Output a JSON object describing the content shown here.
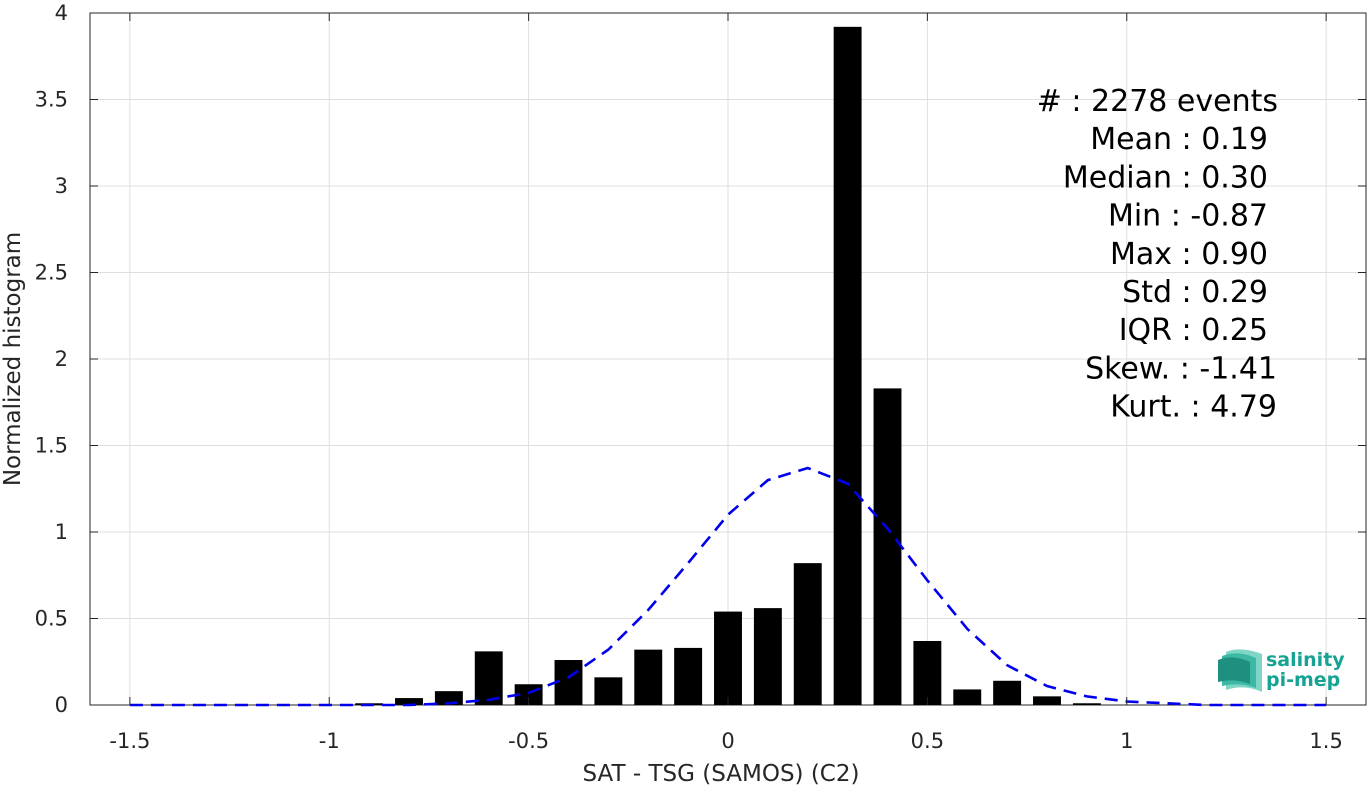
{
  "chart_data": {
    "type": "bar",
    "xlabel": "SAT - TSG (SAMOS) (C2)",
    "ylabel": "Normalized histogram",
    "xlim": [
      -1.6,
      1.6
    ],
    "ylim": [
      0,
      4
    ],
    "xticks": [
      -1.5,
      -1,
      -0.5,
      0,
      0.5,
      1,
      1.5
    ],
    "xtick_labels": [
      "-1.5",
      "-1",
      "-0.5",
      "0",
      "0.5",
      "1",
      "1.5"
    ],
    "yticks": [
      0,
      0.5,
      1,
      1.5,
      2,
      2.5,
      3,
      3.5,
      4
    ],
    "ytick_labels": [
      "0",
      "0.5",
      "1",
      "1.5",
      "2",
      "2.5",
      "3",
      "3.5",
      "4"
    ],
    "grid": true,
    "bar_color": "#000000",
    "bin_width": 0.1,
    "bars": {
      "x": [
        -0.9,
        -0.8,
        -0.7,
        -0.6,
        -0.5,
        -0.4,
        -0.3,
        -0.2,
        -0.1,
        0.0,
        0.1,
        0.2,
        0.3,
        0.4,
        0.5,
        0.6,
        0.7,
        0.8,
        0.9
      ],
      "y": [
        0.01,
        0.04,
        0.08,
        0.31,
        0.12,
        0.26,
        0.16,
        0.32,
        0.33,
        0.54,
        0.56,
        0.82,
        3.92,
        1.83,
        0.37,
        0.09,
        0.14,
        0.05,
        0.01
      ]
    },
    "fit_curve": {
      "style": "dashed",
      "color": "#0000ee",
      "x": [
        -1.5,
        -1.4,
        -1.3,
        -1.2,
        -1.1,
        -1.0,
        -0.9,
        -0.8,
        -0.7,
        -0.6,
        -0.5,
        -0.4,
        -0.3,
        -0.2,
        -0.1,
        0.0,
        0.1,
        0.2,
        0.3,
        0.4,
        0.5,
        0.6,
        0.7,
        0.8,
        0.9,
        1.0,
        1.1,
        1.2,
        1.3,
        1.4,
        1.5
      ],
      "y": [
        0.0,
        0.0,
        0.0,
        0.0,
        0.0,
        0.0,
        0.0,
        0.0,
        0.01,
        0.03,
        0.07,
        0.16,
        0.32,
        0.55,
        0.82,
        1.1,
        1.3,
        1.37,
        1.28,
        1.02,
        0.72,
        0.44,
        0.23,
        0.11,
        0.05,
        0.02,
        0.01,
        0.0,
        0.0,
        0.0,
        0.0
      ]
    },
    "stats": [
      {
        "label": "#  : 2278 events"
      },
      {
        "label": "Mean : 0.19"
      },
      {
        "label": "Median : 0.30"
      },
      {
        "label": "Min : -0.87"
      },
      {
        "label": "Max : 0.90"
      },
      {
        "label": "Std : 0.29"
      },
      {
        "label": "IQR : 0.25"
      },
      {
        "label": "Skew. : -1.41"
      },
      {
        "label": "Kurt. : 4.79"
      }
    ]
  },
  "logo": {
    "line1": "salinity",
    "line2": "pi-mep",
    "color": "#16a394"
  }
}
